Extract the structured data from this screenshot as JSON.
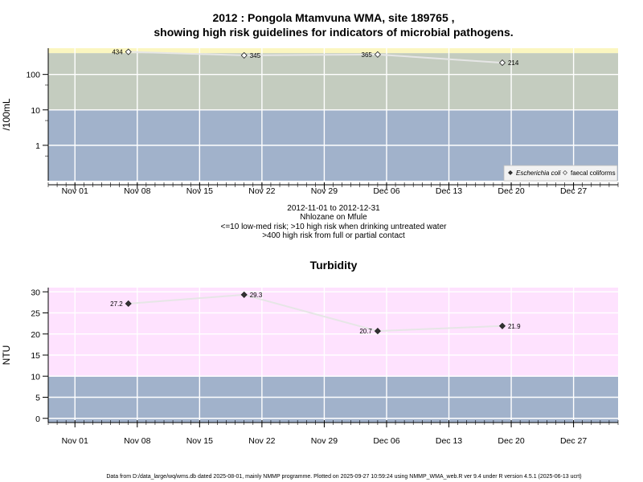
{
  "header": {
    "title_line1": "2012 : Pongola Mtamvuna WMA, site 189765 ,",
    "title_line2": "showing high risk guidelines for indicators of microbial pathogens."
  },
  "micro_info": [
    "2012-11-01 to 2012-12-31",
    "Nhlozane on Mfule",
    "<=10 low-med risk; >10 high risk when drinking untreated water",
    ">400 high risk from full or partial contact"
  ],
  "footer": "Data from D:/data_large/wq/wms.db dated 2025-08-01, mainly NMMP programme. Plotted on 2025-09-27 10:59:24 using NMMP_WMA_web.R ver 9.4 under R version 4.5.1 (2025-06-13 ucrt)",
  "colors": {
    "band_low": "#a1b2cb",
    "band_mid": "#c4ccbf",
    "band_high": "#fbf6c0",
    "band_pink": "#fee2fe",
    "grid": "#ffffff",
    "line": "#e6e6e6"
  },
  "chart_data": [
    {
      "type": "scatter",
      "title": "",
      "xlabel": "",
      "ylabel": "/100mL",
      "y_scale": "log",
      "x_ticks": [
        "Nov 01",
        "Nov 08",
        "Nov 15",
        "Nov 22",
        "Nov 29",
        "Dec 06",
        "Dec 13",
        "Dec 20",
        "Dec 27"
      ],
      "y_ticks": [
        "1",
        "10",
        "100"
      ],
      "xlim": [
        "2012-10-29",
        "2013-01-01"
      ],
      "ylim": [
        0.1,
        550
      ],
      "guideline_bands": [
        {
          "from": 0.1,
          "to": 10,
          "color": "#a1b2cb"
        },
        {
          "from": 10,
          "to": 400,
          "color": "#c4ccbf"
        },
        {
          "from": 400,
          "to": 550,
          "color": "#fbf6c0"
        }
      ],
      "legend": {
        "placement": "bottom-right",
        "entries": [
          "Escherichia coli",
          "faecal coliforms"
        ]
      },
      "series": [
        {
          "name": "faecal coliforms",
          "marker": "open-diamond",
          "x": [
            "2012-11-07",
            "2012-11-20",
            "2012-12-05",
            "2012-12-19"
          ],
          "values": [
            434,
            345,
            365,
            214
          ],
          "labels": [
            "434",
            "345",
            "365",
            "214"
          ],
          "label_side": [
            "left",
            "right",
            "left",
            "right"
          ]
        }
      ]
    },
    {
      "type": "scatter",
      "title": "Turbidity",
      "xlabel": "",
      "ylabel": "NTU",
      "x_ticks": [
        "Nov 01",
        "Nov 08",
        "Nov 15",
        "Nov 22",
        "Nov 29",
        "Dec 06",
        "Dec 13",
        "Dec 20",
        "Dec 27"
      ],
      "y_ticks": [
        "0",
        "5",
        "10",
        "15",
        "20",
        "25",
        "30"
      ],
      "xlim": [
        "2012-10-29",
        "2013-01-01"
      ],
      "ylim": [
        -1,
        31
      ],
      "guideline_bands": [
        {
          "from": -1,
          "to": 10,
          "color": "#a1b2cb"
        },
        {
          "from": 10,
          "to": 31,
          "color": "#fee2fe"
        }
      ],
      "series": [
        {
          "name": "",
          "marker": "filled-diamond",
          "x": [
            "2012-11-07",
            "2012-11-20",
            "2012-12-05",
            "2012-12-19"
          ],
          "values": [
            27.2,
            29.3,
            20.7,
            21.9
          ],
          "labels": [
            "27.2",
            "29.3",
            "20.7",
            "21.9"
          ],
          "label_side": [
            "left",
            "right",
            "left",
            "right"
          ]
        }
      ]
    }
  ]
}
